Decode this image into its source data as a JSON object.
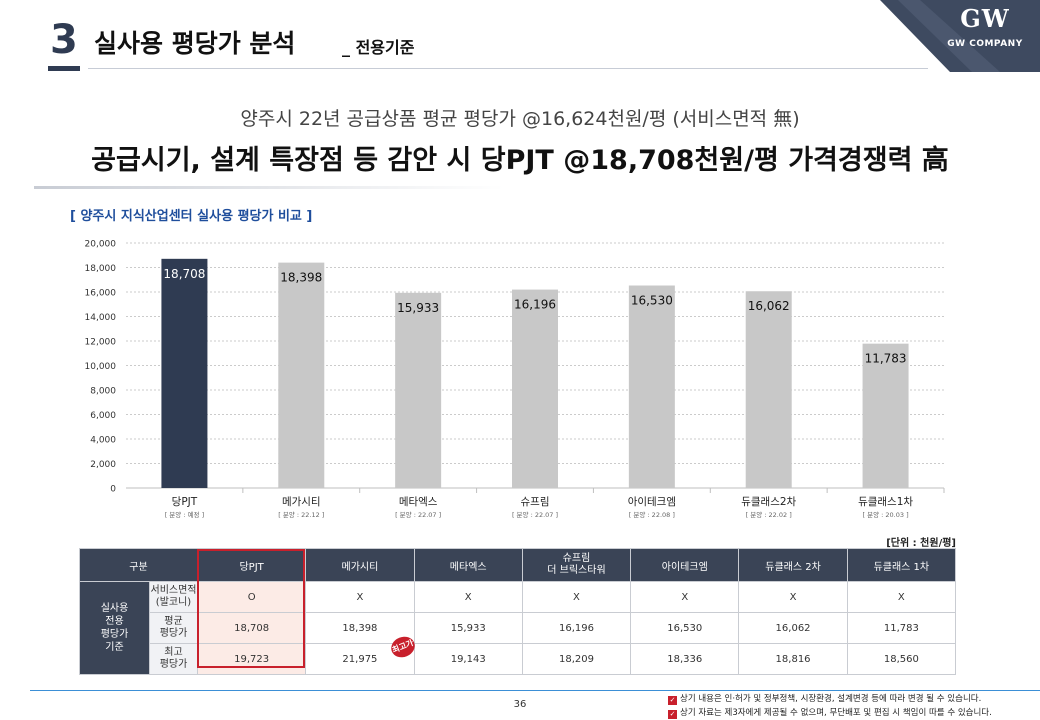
{
  "header": {
    "section_number": "3",
    "section_title": "실사용 평당가 분석",
    "section_subtitle": "_ 전용기준",
    "logo_mark": "GW",
    "logo_name": "GW COMPANY"
  },
  "headline": {
    "sub": "양주시 22년 공급상품 평균 평당가 @16,624천원/평 (서비스면적 無)",
    "main": "공급시기, 설계 특장점 등 감안 시 당PJT @18,708천원/평 가격경쟁력 高"
  },
  "chart_title": "[ 양주시 지식산업센터 실사용 평당가 비교 ]",
  "chart_data": {
    "type": "bar",
    "categories": [
      "당PJT",
      "메가시티",
      "메타엑스",
      "슈프림",
      "아이테크엠",
      "듀클래스2차",
      "듀클래스1차"
    ],
    "sublabels": [
      "[ 분양 : 예정 ]",
      "[ 분양 : 22.12 ]",
      "[ 분양 : 22.07 ]",
      "[ 분양 : 22.07 ]",
      "[ 분양 : 22.08 ]",
      "[ 분양 : 22.02 ]",
      "[ 분양 : 20.03 ]"
    ],
    "values": [
      18708,
      18398,
      15933,
      16196,
      16530,
      16062,
      11783
    ],
    "value_labels": [
      "18,708",
      "18,398",
      "15,933",
      "16,196",
      "16,530",
      "16,062",
      "11,783"
    ],
    "ylim": [
      0,
      20000
    ],
    "yticks": [
      0,
      2000,
      4000,
      6000,
      8000,
      10000,
      12000,
      14000,
      16000,
      18000,
      20000
    ],
    "ytick_labels": [
      "0",
      "2,000",
      "4,000",
      "6,000",
      "8,000",
      "10,000",
      "12,000",
      "14,000",
      "16,000",
      "18,000",
      "20,000"
    ],
    "grid": true,
    "colors": {
      "highlight": "#2f3b52",
      "default": "#c8c8c8",
      "grid": "#bbbbbb"
    }
  },
  "unit_label": "[단위 : 천원/평]",
  "table": {
    "header": {
      "category": "구분",
      "columns": [
        "당PJT",
        "메가시티",
        "메타엑스",
        "슈프림",
        "아이테크엠",
        "듀클래스 2차",
        "듀클래스 1차"
      ],
      "column_3_line2": "더 브릭스타워"
    },
    "group_label": [
      "실사용",
      "전용",
      "평당가",
      "기준"
    ],
    "rows": [
      {
        "label": [
          "서비스면적",
          "(발코니)"
        ],
        "cells": [
          "O",
          "X",
          "X",
          "X",
          "X",
          "X",
          "X"
        ]
      },
      {
        "label": [
          "평균",
          "평당가"
        ],
        "cells": [
          "18,708",
          "18,398",
          "15,933",
          "16,196",
          "16,530",
          "16,062",
          "11,783"
        ]
      },
      {
        "label": [
          "최고",
          "평당가"
        ],
        "cells": [
          "19,723",
          "21,975",
          "19,143",
          "18,209",
          "18,336",
          "18,816",
          "18,560"
        ]
      }
    ],
    "badge": "최고가",
    "highlight_color": "#c8202c"
  },
  "footer": {
    "page_number": "36",
    "notes": [
      "상기 내용은 인·허가 및 정부정책, 시장환경, 설계변경 등에 따라 변경  될 수 있습니다.",
      "상기 자료는 제3자에게 제공될 수 없으며, 무단배포 및 편집 시 책임이 따를 수 있습니다."
    ]
  }
}
